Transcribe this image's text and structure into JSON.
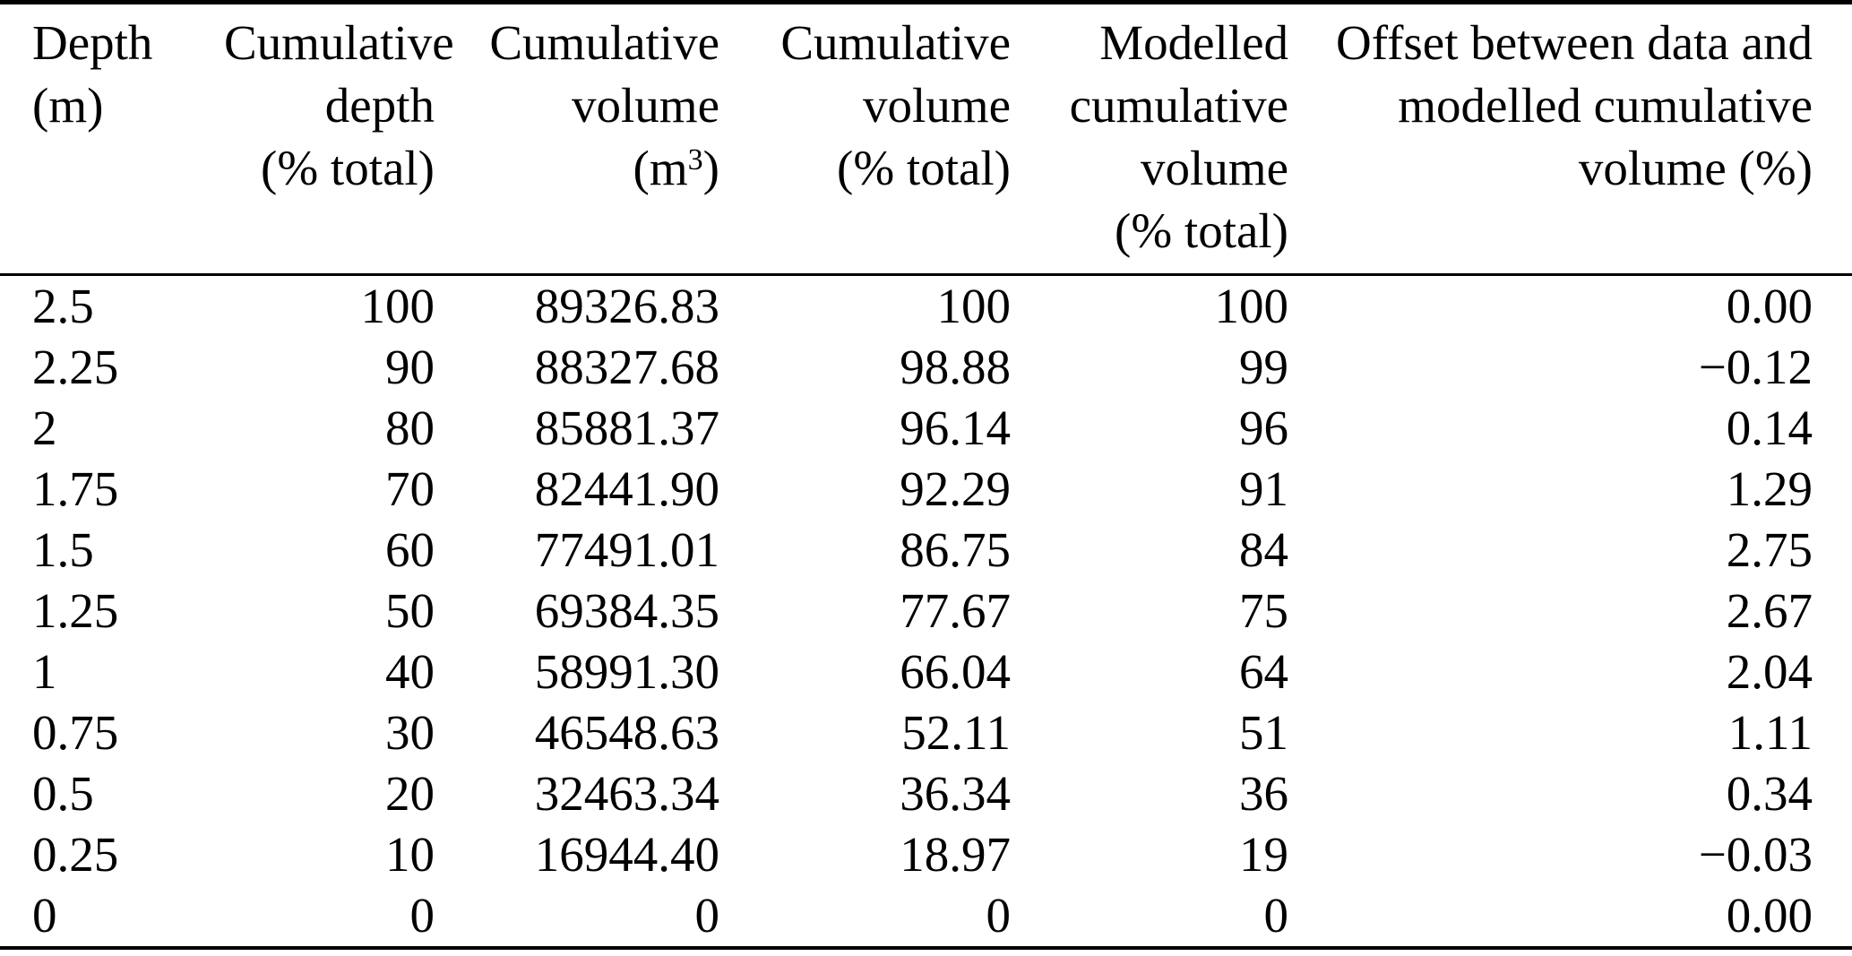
{
  "table": {
    "header": {
      "c1": {
        "l1": "Depth",
        "l2": "(m)"
      },
      "c2": {
        "l1": "Cumulative",
        "l2": "depth",
        "l3": "(% total)"
      },
      "c3": {
        "l1": "Cumulative",
        "l2": "volume",
        "l3a": "(m",
        "l3sup": "3",
        "l3b": ")"
      },
      "c4": {
        "l1": "Cumulative",
        "l2": "volume",
        "l3": "(% total)"
      },
      "c5": {
        "l1": "Modelled",
        "l2": "cumulative",
        "l3": "volume",
        "l4": "(% total)"
      },
      "c6": {
        "l1": "Offset between data and",
        "l2": "modelled cumulative",
        "l3": "volume (%)"
      }
    },
    "rows": [
      [
        "2.5",
        "100",
        "89326.83",
        "100",
        "100",
        "0.00"
      ],
      [
        "2.25",
        "90",
        "88327.68",
        "98.88",
        "99",
        "−0.12"
      ],
      [
        "2",
        "80",
        "85881.37",
        "96.14",
        "96",
        "0.14"
      ],
      [
        "1.75",
        "70",
        "82441.90",
        "92.29",
        "91",
        "1.29"
      ],
      [
        "1.5",
        "60",
        "77491.01",
        "86.75",
        "84",
        "2.75"
      ],
      [
        "1.25",
        "50",
        "69384.35",
        "77.67",
        "75",
        "2.67"
      ],
      [
        "1",
        "40",
        "58991.30",
        "66.04",
        "64",
        "2.04"
      ],
      [
        "0.75",
        "30",
        "46548.63",
        "52.11",
        "51",
        "1.11"
      ],
      [
        "0.5",
        "20",
        "32463.34",
        "36.34",
        "36",
        "0.34"
      ],
      [
        "0.25",
        "10",
        "16944.40",
        "18.97",
        "19",
        "−0.03"
      ],
      [
        "0",
        "0",
        "0",
        "0",
        "0",
        "0.00"
      ]
    ]
  }
}
